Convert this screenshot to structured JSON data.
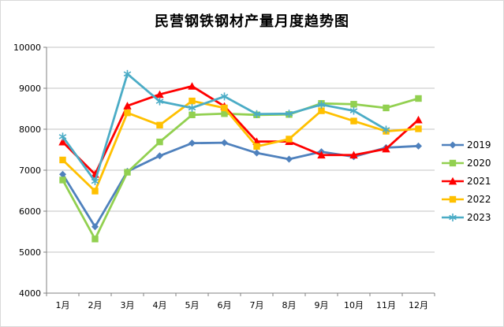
{
  "chart_data": {
    "type": "line",
    "title": "民营钢铁钢材产量月度趋势图",
    "categories": [
      "1月",
      "2月",
      "3月",
      "4月",
      "5月",
      "6月",
      "7月",
      "8月",
      "9月",
      "10月",
      "11月",
      "12月"
    ],
    "series": [
      {
        "name": "2019",
        "color": "#4F81BD",
        "marker": "diamond",
        "values": [
          6900,
          5620,
          6970,
          7350,
          7660,
          7670,
          7420,
          7270,
          7450,
          7330,
          7550,
          7590
        ]
      },
      {
        "name": "2020",
        "color": "#92D050",
        "marker": "square",
        "values": [
          6760,
          5320,
          6950,
          7690,
          8350,
          8380,
          8350,
          8360,
          8630,
          8610,
          8520,
          8750
        ]
      },
      {
        "name": "2021",
        "color": "#FF0000",
        "marker": "triangle",
        "values": [
          7690,
          6900,
          8570,
          8850,
          9050,
          8560,
          7700,
          7700,
          7370,
          7370,
          7520,
          8230
        ]
      },
      {
        "name": "2022",
        "color": "#FFC000",
        "marker": "square",
        "values": [
          7250,
          6490,
          8400,
          8100,
          8690,
          8520,
          7580,
          7760,
          8450,
          8200,
          7950,
          8010
        ]
      },
      {
        "name": "2023",
        "color": "#4BACC6",
        "marker": "asterisk",
        "values": [
          7820,
          6730,
          9350,
          8680,
          8520,
          8800,
          8370,
          8380,
          8600,
          8450,
          7990,
          null
        ]
      }
    ],
    "ylim": [
      4000,
      10000
    ],
    "yticks": [
      4000,
      5000,
      6000,
      7000,
      8000,
      9000,
      10000
    ],
    "xlabel": "",
    "ylabel": "",
    "grid": true,
    "legend_position": "right"
  },
  "style": {
    "gridline_color": "#C3C3C3",
    "axis_color": "#808080",
    "background": "#FFFFFF"
  }
}
